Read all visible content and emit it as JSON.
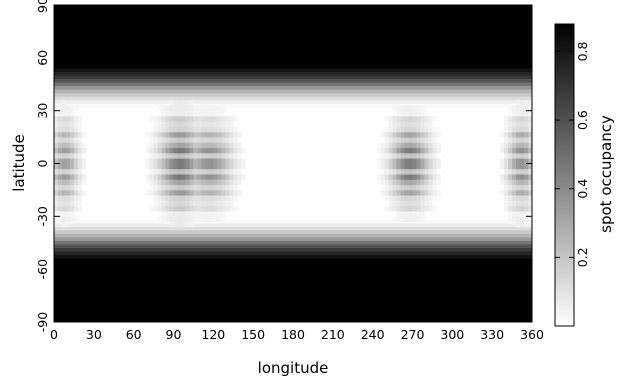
{
  "chart_data": {
    "type": "heatmap",
    "title": "",
    "xlabel": "longitude",
    "ylabel": "latitude",
    "colorbar_label": "spot occupancy",
    "xlim": [
      0,
      360
    ],
    "ylim": [
      -90,
      90
    ],
    "x_ticks": [
      0,
      30,
      60,
      90,
      120,
      150,
      180,
      210,
      240,
      270,
      300,
      330,
      360
    ],
    "y_ticks": [
      -90,
      -60,
      -30,
      0,
      30,
      60,
      90
    ],
    "colorbar_range": [
      0,
      0.88
    ],
    "colorbar_ticks": [
      0.2,
      0.4,
      0.6,
      0.8
    ],
    "colormap": {
      "low": "#ffffff",
      "high": "#000000"
    },
    "latitude_band_profile": [
      {
        "lat": 90,
        "value": 0.88
      },
      {
        "lat": 55,
        "value": 0.88
      },
      {
        "lat": 48,
        "value": 0.65
      },
      {
        "lat": 42,
        "value": 0.3
      },
      {
        "lat": 36,
        "value": 0.08
      },
      {
        "lat": 32,
        "value": 0.0
      },
      {
        "lat": -32,
        "value": 0.0
      },
      {
        "lat": -36,
        "value": 0.08
      },
      {
        "lat": -42,
        "value": 0.3
      },
      {
        "lat": -48,
        "value": 0.65
      },
      {
        "lat": -55,
        "value": 0.88
      },
      {
        "lat": -90,
        "value": 0.88
      }
    ],
    "spot_regions": [
      {
        "lon_center": 95,
        "lon_width": 24,
        "lat_center": 0,
        "lat_height": 55,
        "peak": 0.55
      },
      {
        "lon_center": 117,
        "lon_width": 26,
        "lat_center": 0,
        "lat_height": 50,
        "peak": 0.45
      },
      {
        "lon_center": 268,
        "lon_width": 22,
        "lat_center": 0,
        "lat_height": 50,
        "peak": 0.55
      },
      {
        "lon_center": 8,
        "lon_width": 16,
        "lat_center": 0,
        "lat_height": 55,
        "peak": 0.4
      },
      {
        "lon_center": 352,
        "lon_width": 16,
        "lat_center": 0,
        "lat_height": 55,
        "peak": 0.45
      }
    ]
  }
}
